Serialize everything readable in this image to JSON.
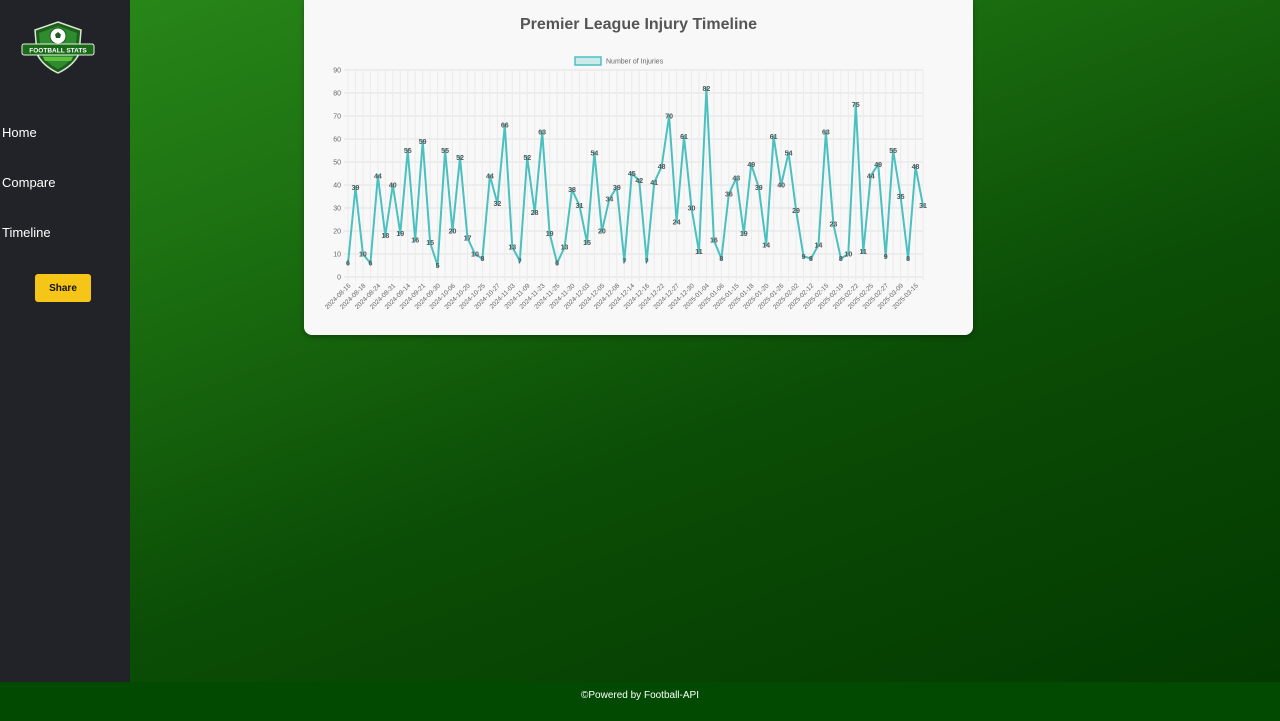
{
  "sidebar": {
    "logo_text": "FOOTBALL STATS",
    "nav": [
      {
        "label": "Home"
      },
      {
        "label": "Compare"
      },
      {
        "label": "Timeline"
      }
    ],
    "share_label": "Share"
  },
  "footer": {
    "text": "©Powered by Football-API"
  },
  "colors": {
    "sidebar": "#212329",
    "accent": "#f5c518",
    "line": "#4bc0c0",
    "footer": "#024a02"
  },
  "chart_data": {
    "type": "line",
    "title": "Premier League Injury Timeline",
    "legend_position": "top",
    "grid": true,
    "ylim": [
      0,
      90
    ],
    "yticks": [
      0,
      10,
      20,
      30,
      40,
      50,
      60,
      70,
      80,
      90
    ],
    "tick_labels": [
      "2024-08-16",
      "2024-08-18",
      "2024-08-24",
      "2024-08-31",
      "2024-09-14",
      "2024-09-21",
      "2024-09-30",
      "2024-10-06",
      "2024-10-20",
      "2024-10-25",
      "2024-10-27",
      "2024-11-03",
      "2024-11-09",
      "2024-11-23",
      "2024-11-25",
      "2024-11-30",
      "2024-12-03",
      "2024-12-05",
      "2024-12-08",
      "2024-12-14",
      "2024-12-16",
      "2024-12-22",
      "2024-12-27",
      "2024-12-30",
      "2025-01-04",
      "2025-01-06",
      "2025-01-15",
      "2025-01-18",
      "2025-01-20",
      "2025-01-26",
      "2025-02-02",
      "2025-02-12",
      "2025-02-15",
      "2025-02-19",
      "2025-02-22",
      "2025-02-25",
      "2025-02-27",
      "2025-03-09",
      "2025-03-15"
    ],
    "series": [
      {
        "name": "Number of Injuries",
        "values": [
          6,
          39,
          10,
          6,
          44,
          18,
          40,
          19,
          55,
          16,
          59,
          15,
          5,
          55,
          20,
          52,
          17,
          10,
          8,
          44,
          32,
          66,
          13,
          7,
          52,
          28,
          63,
          19,
          6,
          13,
          38,
          31,
          15,
          54,
          20,
          34,
          39,
          7,
          45,
          42,
          7,
          41,
          48,
          70,
          24,
          61,
          30,
          11,
          82,
          16,
          8,
          36,
          43,
          19,
          49,
          39,
          14,
          61,
          40,
          54,
          29,
          9,
          8,
          14,
          63,
          23,
          8,
          10,
          75,
          11,
          44,
          49,
          9,
          55,
          35,
          8,
          48,
          31
        ]
      }
    ]
  }
}
